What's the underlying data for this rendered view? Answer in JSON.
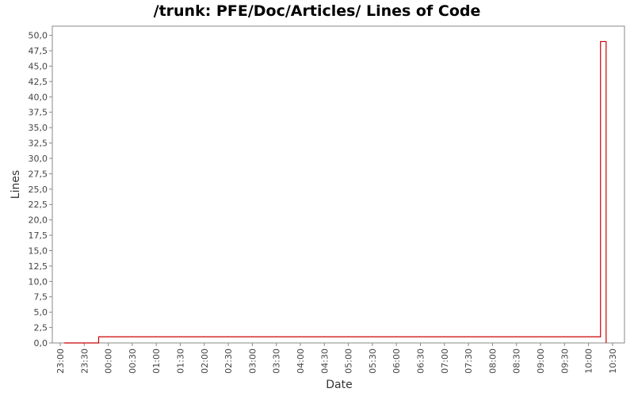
{
  "chart_data": {
    "type": "line",
    "title": "/trunk: PFE/Doc/Articles/ Lines of Code",
    "xlabel": "Date",
    "ylabel": "Lines",
    "x_tick_labels": [
      "23:00",
      "23:30",
      "00:00",
      "00:30",
      "01:00",
      "01:30",
      "02:00",
      "02:30",
      "03:00",
      "03:30",
      "04:00",
      "04:30",
      "05:00",
      "05:30",
      "06:00",
      "06:30",
      "07:00",
      "07:30",
      "08:00",
      "08:30",
      "09:00",
      "09:30",
      "10:00",
      "10:30"
    ],
    "y_tick_labels": [
      "0,0",
      "2,5",
      "5,0",
      "7,5",
      "10,0",
      "12,5",
      "15,0",
      "17,5",
      "20,0",
      "22,5",
      "25,0",
      "27,5",
      "30,0",
      "32,5",
      "35,0",
      "37,5",
      "40,0",
      "42,5",
      "45,0",
      "47,5",
      "50,0"
    ],
    "ylim": [
      0,
      51.5
    ],
    "step": true,
    "series": [
      {
        "color": "#cc0000",
        "x": [
          "23:05",
          "23:48",
          "10:15",
          "10:22"
        ],
        "y": [
          0,
          1,
          49,
          0
        ]
      }
    ]
  }
}
